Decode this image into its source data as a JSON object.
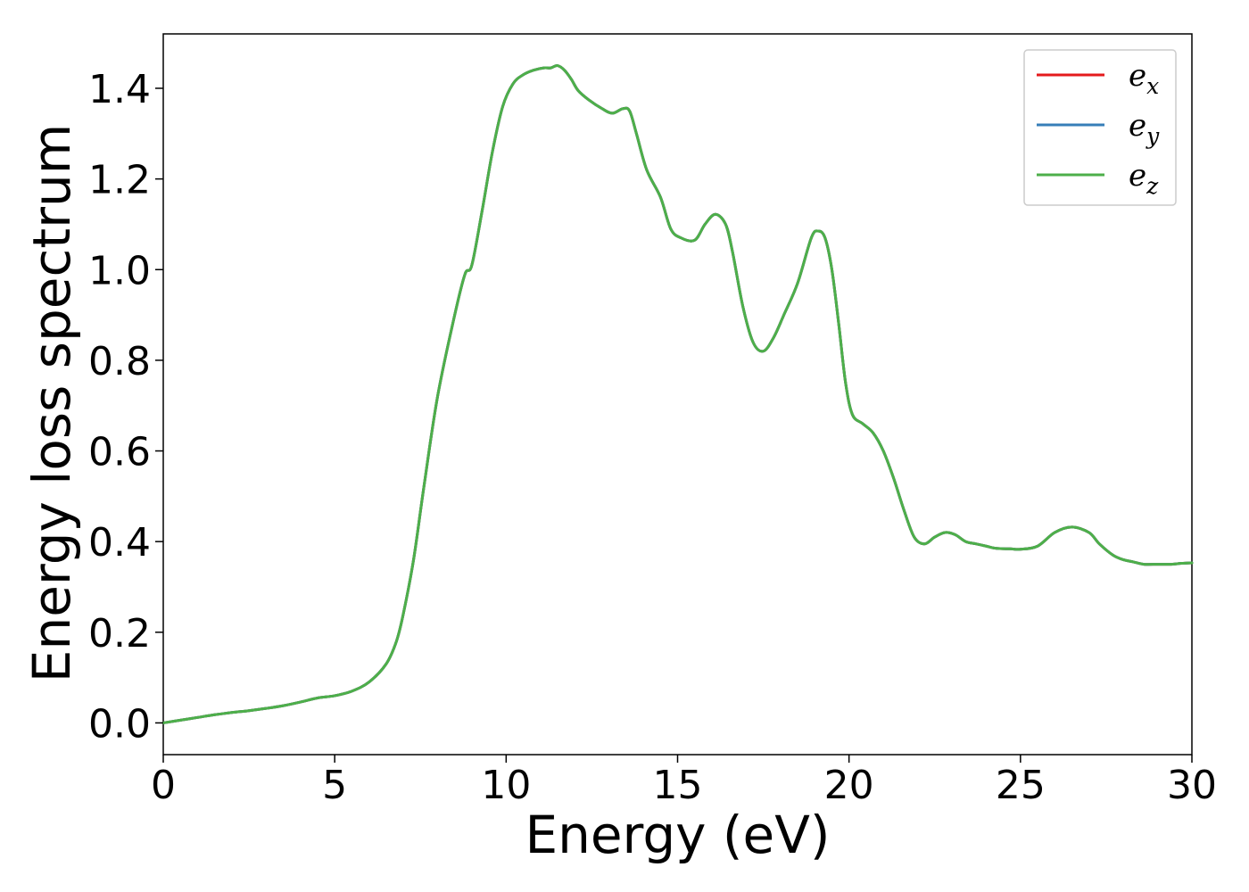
{
  "chart_data": {
    "type": "line",
    "title": "",
    "xlabel": "Energy (eV)",
    "ylabel": "Energy loss spectrum",
    "xlim": [
      0,
      30
    ],
    "ylim": [
      -0.07,
      1.52
    ],
    "xticks": [
      0,
      5,
      10,
      15,
      20,
      25,
      30
    ],
    "xtick_labels": [
      "0",
      "5",
      "10",
      "15",
      "20",
      "25",
      "30"
    ],
    "yticks": [
      0.0,
      0.2,
      0.4,
      0.6,
      0.8,
      1.0,
      1.2,
      1.4
    ],
    "ytick_labels": [
      "0.0",
      "0.2",
      "0.4",
      "0.6",
      "0.8",
      "1.0",
      "1.2",
      "1.4"
    ],
    "grid": false,
    "legend_position": "top-right",
    "series": [
      {
        "name": "ex",
        "legend_base": "e",
        "legend_sub": "x",
        "color": "#e41a1c",
        "x": [
          0,
          0.5,
          1,
          1.5,
          2,
          2.5,
          3,
          3.5,
          4,
          4.5,
          5,
          5.5,
          6,
          6.5,
          6.8,
          7,
          7.3,
          7.6,
          8,
          8.5,
          8.8,
          9,
          9.3,
          9.6,
          9.9,
          10.2,
          10.5,
          10.8,
          11.1,
          11.3,
          11.5,
          11.7,
          11.9,
          12.1,
          12.4,
          12.8,
          13.1,
          13.4,
          13.6,
          13.8,
          14.1,
          14.5,
          14.8,
          15.1,
          15.5,
          15.8,
          16.1,
          16.4,
          16.6,
          16.9,
          17.2,
          17.5,
          17.8,
          18.1,
          18.5,
          18.9,
          19.1,
          19.3,
          19.5,
          19.7,
          19.9,
          20.1,
          20.4,
          20.7,
          21,
          21.3,
          21.6,
          21.9,
          22.2,
          22.5,
          22.8,
          23.1,
          23.4,
          23.7,
          24,
          24.3,
          24.7,
          25,
          25.5,
          26,
          26.5,
          27,
          27.3,
          27.7,
          28,
          28.3,
          28.6,
          29,
          29.4,
          29.7,
          30
        ],
        "y": [
          0.0,
          0.006,
          0.012,
          0.018,
          0.023,
          0.027,
          0.032,
          0.038,
          0.046,
          0.055,
          0.06,
          0.07,
          0.09,
          0.13,
          0.18,
          0.24,
          0.36,
          0.52,
          0.72,
          0.9,
          0.99,
          1.01,
          1.13,
          1.26,
          1.36,
          1.41,
          1.43,
          1.44,
          1.445,
          1.445,
          1.45,
          1.44,
          1.42,
          1.395,
          1.375,
          1.355,
          1.345,
          1.355,
          1.35,
          1.3,
          1.22,
          1.16,
          1.09,
          1.07,
          1.065,
          1.1,
          1.122,
          1.1,
          1.04,
          0.92,
          0.84,
          0.82,
          0.85,
          0.9,
          0.97,
          1.07,
          1.085,
          1.07,
          1.0,
          0.88,
          0.75,
          0.68,
          0.66,
          0.64,
          0.6,
          0.54,
          0.47,
          0.41,
          0.395,
          0.41,
          0.42,
          0.415,
          0.4,
          0.395,
          0.39,
          0.385,
          0.384,
          0.383,
          0.39,
          0.42,
          0.432,
          0.42,
          0.395,
          0.37,
          0.36,
          0.355,
          0.35,
          0.35,
          0.35,
          0.352,
          0.353
        ]
      },
      {
        "name": "ey",
        "legend_base": "e",
        "legend_sub": "y",
        "color": "#377eb8",
        "x": [
          0,
          0.5,
          1,
          1.5,
          2,
          2.5,
          3,
          3.5,
          4,
          4.5,
          5,
          5.5,
          6,
          6.5,
          6.8,
          7,
          7.3,
          7.6,
          8,
          8.5,
          8.8,
          9,
          9.3,
          9.6,
          9.9,
          10.2,
          10.5,
          10.8,
          11.1,
          11.3,
          11.5,
          11.7,
          11.9,
          12.1,
          12.4,
          12.8,
          13.1,
          13.4,
          13.6,
          13.8,
          14.1,
          14.5,
          14.8,
          15.1,
          15.5,
          15.8,
          16.1,
          16.4,
          16.6,
          16.9,
          17.2,
          17.5,
          17.8,
          18.1,
          18.5,
          18.9,
          19.1,
          19.3,
          19.5,
          19.7,
          19.9,
          20.1,
          20.4,
          20.7,
          21,
          21.3,
          21.6,
          21.9,
          22.2,
          22.5,
          22.8,
          23.1,
          23.4,
          23.7,
          24,
          24.3,
          24.7,
          25,
          25.5,
          26,
          26.5,
          27,
          27.3,
          27.7,
          28,
          28.3,
          28.6,
          29,
          29.4,
          29.7,
          30
        ],
        "y": [
          0.0,
          0.006,
          0.012,
          0.018,
          0.023,
          0.027,
          0.032,
          0.038,
          0.046,
          0.055,
          0.06,
          0.07,
          0.09,
          0.13,
          0.18,
          0.24,
          0.36,
          0.52,
          0.72,
          0.9,
          0.99,
          1.01,
          1.13,
          1.26,
          1.36,
          1.41,
          1.43,
          1.44,
          1.445,
          1.445,
          1.45,
          1.44,
          1.42,
          1.395,
          1.375,
          1.355,
          1.345,
          1.355,
          1.35,
          1.3,
          1.22,
          1.16,
          1.09,
          1.07,
          1.065,
          1.1,
          1.122,
          1.1,
          1.04,
          0.92,
          0.84,
          0.82,
          0.85,
          0.9,
          0.97,
          1.07,
          1.085,
          1.07,
          1.0,
          0.88,
          0.75,
          0.68,
          0.66,
          0.64,
          0.6,
          0.54,
          0.47,
          0.41,
          0.395,
          0.41,
          0.42,
          0.415,
          0.4,
          0.395,
          0.39,
          0.385,
          0.384,
          0.383,
          0.39,
          0.42,
          0.432,
          0.42,
          0.395,
          0.37,
          0.36,
          0.355,
          0.35,
          0.35,
          0.35,
          0.352,
          0.353
        ]
      },
      {
        "name": "ez",
        "legend_base": "e",
        "legend_sub": "z",
        "color": "#4daf4a",
        "x": [
          0,
          0.5,
          1,
          1.5,
          2,
          2.5,
          3,
          3.5,
          4,
          4.5,
          5,
          5.5,
          6,
          6.5,
          6.8,
          7,
          7.3,
          7.6,
          8,
          8.5,
          8.8,
          9,
          9.3,
          9.6,
          9.9,
          10.2,
          10.5,
          10.8,
          11.1,
          11.3,
          11.5,
          11.7,
          11.9,
          12.1,
          12.4,
          12.8,
          13.1,
          13.4,
          13.6,
          13.8,
          14.1,
          14.5,
          14.8,
          15.1,
          15.5,
          15.8,
          16.1,
          16.4,
          16.6,
          16.9,
          17.2,
          17.5,
          17.8,
          18.1,
          18.5,
          18.9,
          19.1,
          19.3,
          19.5,
          19.7,
          19.9,
          20.1,
          20.4,
          20.7,
          21,
          21.3,
          21.6,
          21.9,
          22.2,
          22.5,
          22.8,
          23.1,
          23.4,
          23.7,
          24,
          24.3,
          24.7,
          25,
          25.5,
          26,
          26.5,
          27,
          27.3,
          27.7,
          28,
          28.3,
          28.6,
          29,
          29.4,
          29.7,
          30
        ],
        "y": [
          0.0,
          0.006,
          0.012,
          0.018,
          0.023,
          0.027,
          0.032,
          0.038,
          0.046,
          0.055,
          0.06,
          0.07,
          0.09,
          0.13,
          0.18,
          0.24,
          0.36,
          0.52,
          0.72,
          0.9,
          0.99,
          1.01,
          1.13,
          1.26,
          1.36,
          1.41,
          1.43,
          1.44,
          1.445,
          1.445,
          1.45,
          1.44,
          1.42,
          1.395,
          1.375,
          1.355,
          1.345,
          1.355,
          1.35,
          1.3,
          1.22,
          1.16,
          1.09,
          1.07,
          1.065,
          1.1,
          1.122,
          1.1,
          1.04,
          0.92,
          0.84,
          0.82,
          0.85,
          0.9,
          0.97,
          1.07,
          1.085,
          1.07,
          1.0,
          0.88,
          0.75,
          0.68,
          0.66,
          0.64,
          0.6,
          0.54,
          0.47,
          0.41,
          0.395,
          0.41,
          0.42,
          0.415,
          0.4,
          0.395,
          0.39,
          0.385,
          0.384,
          0.383,
          0.39,
          0.42,
          0.432,
          0.42,
          0.395,
          0.37,
          0.36,
          0.355,
          0.35,
          0.35,
          0.35,
          0.352,
          0.353
        ]
      }
    ]
  }
}
